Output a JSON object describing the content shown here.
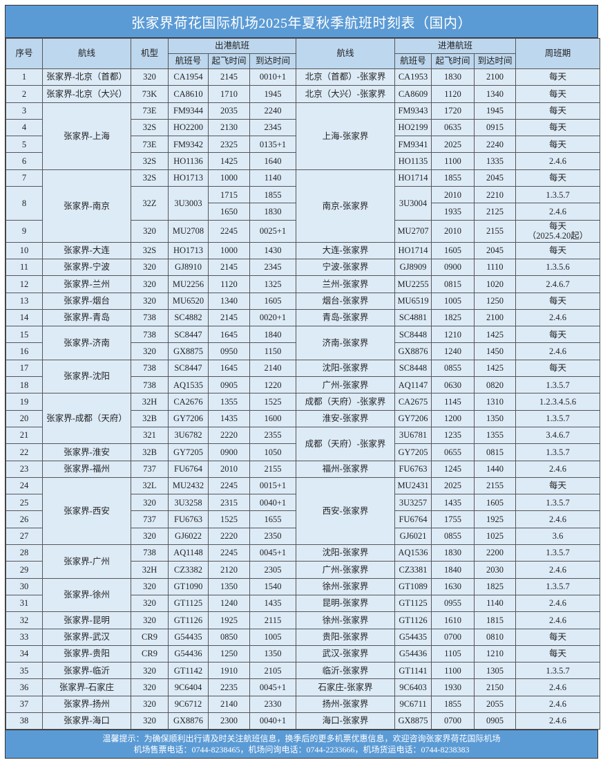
{
  "title": "张家界荷花国际机场2025年夏秋季航班时刻表（国内）",
  "header": {
    "seq": "序号",
    "out_route": "航线",
    "type": "机型",
    "outbound_group": "出港航班",
    "in_route": "航线",
    "inbound_group": "进港航班",
    "days": "周班期",
    "flight_no": "航班号",
    "dep_time": "起飞时间",
    "arr_time": "到达时间"
  },
  "columns": [
    "seq",
    "out_route",
    "type",
    "out_no",
    "out_dep",
    "out_arr",
    "in_route",
    "in_no",
    "in_dep",
    "in_arr",
    "days"
  ],
  "rows": [
    [
      "1",
      "张家界-北京（首都）",
      "320",
      "CA1954",
      "2145",
      "0010+1",
      "北京（首都）-张家界",
      "CA1953",
      "1830",
      "2100",
      "每天"
    ],
    [
      "2",
      "张家界-北京（大兴）",
      "73K",
      "CA8610",
      "1710",
      "1945",
      "北京（大兴）-张家界",
      "CA8609",
      "1120",
      "1340",
      "每天"
    ],
    [
      "3",
      "张家界-上海",
      "73E",
      "FM9344",
      "2035",
      "2240",
      "上海-张家界",
      "FM9343",
      "1720",
      "1945",
      "每天"
    ],
    [
      "4",
      null,
      "32S",
      "HO2200",
      "2130",
      "2345",
      null,
      "HO2199",
      "0635",
      "0915",
      "每天"
    ],
    [
      "5",
      null,
      "73E",
      "FM9342",
      "2325",
      "0135+1",
      null,
      "FM9341",
      "2025",
      "2240",
      "每天"
    ],
    [
      "6",
      null,
      "32S",
      "HO1136",
      "1425",
      "1640",
      null,
      "HO1135",
      "1100",
      "1335",
      "2.4.6"
    ],
    [
      "7",
      "张家界-南京",
      "32S",
      "HO1713",
      "1000",
      "1140",
      "南京-张家界",
      "HO1714",
      "1855",
      "2045",
      "每天"
    ],
    [
      "8",
      null,
      "32Z",
      "3U3003",
      "1715",
      "1855",
      null,
      "3U3004",
      "2010",
      "2210",
      "1.3.5.7"
    ],
    [
      null,
      null,
      null,
      null,
      "1650",
      "1830",
      null,
      null,
      "1935",
      "2125",
      "2.4.6"
    ],
    [
      "9",
      null,
      "320",
      "MU2708",
      "2245",
      "0025+1",
      null,
      "MU2707",
      "2010",
      "2155",
      "每天\n（2025.4.20起）"
    ],
    [
      "10",
      "张家界-大连",
      "32S",
      "HO1713",
      "1000",
      "1430",
      "大连-张家界",
      "HO1714",
      "1605",
      "2045",
      "每天"
    ],
    [
      "11",
      "张家界-宁波",
      "320",
      "GJ8910",
      "2145",
      "2345",
      "宁波-张家界",
      "GJ8909",
      "0900",
      "1110",
      "1.3.5.6"
    ],
    [
      "12",
      "张家界-兰州",
      "320",
      "MU2256",
      "1120",
      "1325",
      "兰州-张家界",
      "MU2255",
      "0815",
      "1020",
      "2.4.6.7"
    ],
    [
      "13",
      "张家界-烟台",
      "320",
      "MU6520",
      "1340",
      "1605",
      "烟台-张家界",
      "MU6519",
      "1005",
      "1250",
      "每天"
    ],
    [
      "14",
      "张家界-青岛",
      "738",
      "SC4882",
      "2145",
      "0020+1",
      "青岛-张家界",
      "SC4881",
      "1825",
      "2100",
      "2.4.6"
    ],
    [
      "15",
      "张家界-济南",
      "738",
      "SC8447",
      "1645",
      "1840",
      "济南-张家界",
      "SC8448",
      "1210",
      "1425",
      "每天"
    ],
    [
      "16",
      null,
      "320",
      "GX8875",
      "0950",
      "1150",
      null,
      "GX8876",
      "1240",
      "1450",
      "2.4.6"
    ],
    [
      "17",
      "张家界-沈阳",
      "738",
      "SC8447",
      "1645",
      "2140",
      "沈阳-张家界",
      "SC8448",
      "0855",
      "1425",
      "每天"
    ],
    [
      "18",
      null,
      "738",
      "AQ1535",
      "0905",
      "1220",
      "广州-张家界",
      "AQ1147",
      "0630",
      "0820",
      "1.3.5.7"
    ],
    [
      "19",
      "张家界-成都（天府）",
      "32H",
      "CA2676",
      "1355",
      "1525",
      "成都（天府）-张家界",
      "CA2675",
      "1145",
      "1310",
      "1.2.3.4.5.6"
    ],
    [
      "20",
      null,
      "32B",
      "GY7206",
      "1435",
      "1600",
      "淮安-张家界",
      "GY7206",
      "1200",
      "1350",
      "1.3.5.7"
    ],
    [
      "21",
      null,
      "321",
      "3U6782",
      "2220",
      "2355",
      "成都（天府）-张家界",
      "3U6781",
      "1235",
      "1355",
      "3.4.6.7"
    ],
    [
      "22",
      "张家界-淮安",
      "32B",
      "GY7205",
      "0900",
      "1050",
      null,
      "GY7205",
      "0655",
      "0815",
      "1.3.5.7"
    ],
    [
      "23",
      "张家界-福州",
      "737",
      "FU6764",
      "2010",
      "2155",
      "福州-张家界",
      "FU6763",
      "1245",
      "1440",
      "2.4.6"
    ],
    [
      "24",
      "张家界-西安",
      "32L",
      "MU2432",
      "2245",
      "0015+1",
      "西安-张家界",
      "MU2431",
      "2025",
      "2155",
      "每天"
    ],
    [
      "25",
      null,
      "320",
      "3U3258",
      "2315",
      "0040+1",
      null,
      "3U3257",
      "1435",
      "1605",
      "1.3.5.7"
    ],
    [
      "26",
      null,
      "737",
      "FU6763",
      "1525",
      "1655",
      null,
      "FU6764",
      "1755",
      "1925",
      "2.4.6"
    ],
    [
      "27",
      null,
      "320",
      "GJ6022",
      "2220",
      "2350",
      null,
      "GJ6021",
      "0855",
      "1025",
      "3.6"
    ],
    [
      "28",
      "张家界-广州",
      "738",
      "AQ1148",
      "2245",
      "0045+1",
      "沈阳-张家界",
      "AQ1536",
      "1830",
      "2200",
      "1.3.5.7"
    ],
    [
      "29",
      null,
      "32H",
      "CZ3382",
      "2120",
      "2305",
      "广州-张家界",
      "CZ3381",
      "1840",
      "2030",
      "2.4.6"
    ],
    [
      "30",
      "张家界-徐州",
      "320",
      "GT1090",
      "1350",
      "1540",
      "徐州-张家界",
      "GT1089",
      "1630",
      "1825",
      "1.3.5.7"
    ],
    [
      "31",
      null,
      "320",
      "GT1125",
      "1240",
      "1435",
      "昆明-张家界",
      "GT1125",
      "0955",
      "1140",
      "2.4.6"
    ],
    [
      "32",
      "张家界-昆明",
      "320",
      "GT1126",
      "1925",
      "2115",
      "徐州-张家界",
      "GT1126",
      "1610",
      "1815",
      "2.4.6"
    ],
    [
      "33",
      "张家界-武汉",
      "CR9",
      "G54435",
      "0850",
      "1005",
      "贵阳-张家界",
      "G54435",
      "0700",
      "0810",
      "每天"
    ],
    [
      "34",
      "张家界-贵阳",
      "CR9",
      "G54436",
      "1250",
      "1350",
      "武汉-张家界",
      "G54436",
      "1105",
      "1210",
      "每天"
    ],
    [
      "35",
      "张家界-临沂",
      "320",
      "GT1142",
      "1910",
      "2105",
      "临沂-张家界",
      "GT1141",
      "1100",
      "1305",
      "1.3.5.7"
    ],
    [
      "36",
      "张家界-石家庄",
      "320",
      "9C6404",
      "2235",
      "0045+1",
      "石家庄-张家界",
      "9C6403",
      "1930",
      "2150",
      "2.4.6"
    ],
    [
      "37",
      "张家界-扬州",
      "320",
      "9C6712",
      "2140",
      "2330",
      "扬州-张家界",
      "9C6711",
      "1855",
      "2055",
      "2.4.6"
    ],
    [
      "38",
      "张家界-海口",
      "320",
      "GX8876",
      "2300",
      "0040+1",
      "海口-张家界",
      "GX8875",
      "0700",
      "0905",
      "2.4.6"
    ]
  ],
  "footer": {
    "line1": "温馨提示：为确保顺利出行请及时关注航班信息，换季后的更多机票优惠信息，欢迎咨询张家界荷花国际机场",
    "line2": "机场售票电话：0744-8238465，机场问询电话：0744-2233666，机场货运电话：0744-8238383"
  },
  "colors": {
    "title_bg": "#5b9bd5",
    "header_bg": "#bdd7ee",
    "cell_bg": "#ddebf7"
  }
}
